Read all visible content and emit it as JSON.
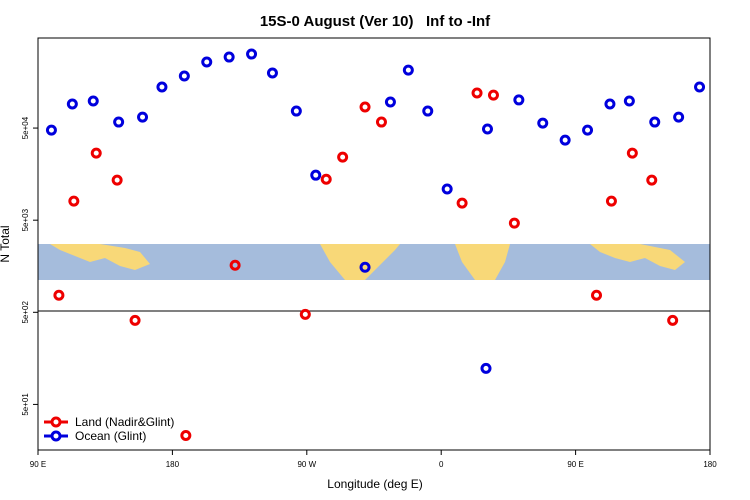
{
  "chart_data": {
    "type": "scatter",
    "title": "15S-0 August (Ver 10)   Inf to -Inf",
    "x_label": "Longitude (deg E)",
    "y_label": "N Total",
    "yscale": "log",
    "xlim": [
      90,
      540
    ],
    "xticks": [
      {
        "value": 90,
        "label": "90 E"
      },
      180,
      {
        "value": 270,
        "label": "90 W"
      },
      {
        "value": 360,
        "label": "0"
      },
      {
        "value": 450,
        "label": "90 E"
      },
      {
        "value": 540,
        "label": "180"
      }
    ],
    "ylim": [
      16,
      475000
    ],
    "yticks": [
      {
        "value": 50000,
        "label": "5e+04"
      },
      {
        "value": 5000,
        "label": "5e+03"
      },
      {
        "value": 500,
        "label": "5e+02"
      },
      {
        "value": 50,
        "label": "5e+01"
      }
    ],
    "legend": "bottom-left",
    "series": [
      {
        "name": "Land (Nadir&Glint)",
        "color": "#ee0000",
        "x": [
          104,
          114,
          129,
          143,
          155,
          189,
          222,
          269,
          283,
          294,
          309,
          320,
          374,
          384,
          395,
          409,
          464,
          474,
          488,
          501,
          515
        ],
        "values": [
          766,
          8050,
          26700,
          13600,
          409,
          23,
          1620,
          475,
          13900,
          24200,
          84600,
          58100,
          7660,
          120000,
          114000,
          4640,
          766,
          8050,
          26700,
          13600,
          409
        ]
      },
      {
        "name": "Ocean (Glint)",
        "color": "#0000dd",
        "x": [
          99,
          113,
          127,
          144,
          160,
          173,
          188,
          203,
          218,
          233,
          247,
          263,
          276,
          309,
          326,
          338,
          351,
          364,
          390,
          391,
          412,
          428,
          443,
          458,
          473,
          486,
          503,
          519,
          533
        ],
        "values": [
          47500,
          91200,
          98300,
          58100,
          65800,
          139500,
          183600,
          261000,
          295000,
          318000,
          198000,
          76500,
          15400,
          1540,
          95900,
          213000,
          76500,
          10900,
          123,
          48800,
          101000,
          56600,
          37000,
          47500,
          91200,
          98300,
          58100,
          65800,
          139500
        ]
      }
    ]
  }
}
